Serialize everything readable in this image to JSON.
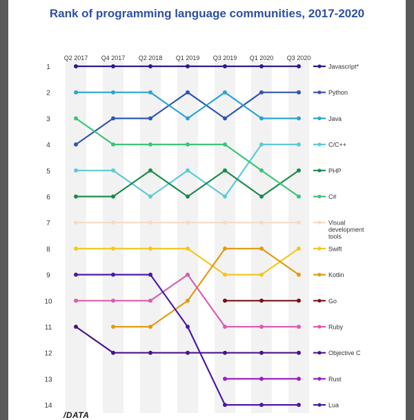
{
  "chart_data": {
    "type": "line",
    "title": "Rank of programming language communities, 2017-2020",
    "x": [
      "Q2 2017",
      "Q4 2017",
      "Q2 2018",
      "Q1 2019",
      "Q3 2019",
      "Q1 2020",
      "Q3 2020"
    ],
    "ylim": [
      1,
      14
    ],
    "y_ticks": [
      "1",
      "2",
      "3",
      "4",
      "5",
      "6",
      "7",
      "8",
      "9",
      "10",
      "11",
      "12",
      "13",
      "14"
    ],
    "y_inverted": true,
    "series": [
      {
        "name": "Javascript*",
        "color": "#2a1b8c",
        "values": [
          1,
          1,
          1,
          1,
          1,
          1,
          1
        ]
      },
      {
        "name": "Python",
        "color": "#2f55b0",
        "values": [
          4,
          3,
          3,
          2,
          3,
          2,
          2
        ]
      },
      {
        "name": "Java",
        "color": "#2aa3d4",
        "values": [
          2,
          2,
          2,
          3,
          2,
          3,
          3
        ]
      },
      {
        "name": "C/C++",
        "color": "#5bcbd6",
        "values": [
          5,
          5,
          6,
          5,
          6,
          4,
          4
        ]
      },
      {
        "name": "PHP",
        "color": "#1c8a4e",
        "values": [
          6,
          6,
          5,
          6,
          5,
          6,
          5
        ]
      },
      {
        "name": "C#",
        "color": "#3ac47a",
        "values": [
          3,
          4,
          4,
          4,
          4,
          5,
          6
        ]
      },
      {
        "name": "Visual development tools",
        "color": "#f7d9c8",
        "values": [
          7,
          7,
          7,
          7,
          7,
          7,
          7
        ]
      },
      {
        "name": "Swift",
        "color": "#f2c81c",
        "values": [
          8,
          8,
          8,
          8,
          9,
          9,
          8
        ]
      },
      {
        "name": "Kotlin",
        "color": "#e39a12",
        "values": [
          null,
          11,
          11,
          10,
          8,
          8,
          9
        ]
      },
      {
        "name": "Go",
        "color": "#7a0f16",
        "values": [
          null,
          null,
          null,
          null,
          10,
          10,
          10
        ]
      },
      {
        "name": "Ruby",
        "color": "#d95cb0",
        "values": [
          10,
          10,
          10,
          9,
          11,
          11,
          11
        ]
      },
      {
        "name": "Objective C",
        "color": "#4a128a",
        "values": [
          11,
          12,
          12,
          12,
          12,
          12,
          12
        ]
      },
      {
        "name": "Rust",
        "color": "#9a1fc4",
        "values": [
          null,
          null,
          null,
          null,
          13,
          13,
          13
        ]
      },
      {
        "name": "Lua",
        "color": "#4a18a8",
        "values": [
          9,
          9,
          9,
          11,
          14,
          14,
          14
        ]
      }
    ],
    "legend_labels": [
      [
        "Javascript*"
      ],
      [
        "Python"
      ],
      [
        "Java"
      ],
      [
        "C/C++"
      ],
      [
        "PHP"
      ],
      [
        "C#"
      ],
      [
        "Visual",
        "development",
        "tools"
      ],
      [
        "Swift"
      ],
      [
        "Kotlin"
      ],
      [
        "Go"
      ],
      [
        "Ruby"
      ],
      [
        "Objective C"
      ],
      [
        "Rust"
      ],
      [
        "Lua"
      ]
    ],
    "legend_placement": "right",
    "grid": false
  },
  "footer": {
    "logo": "/DATA"
  }
}
